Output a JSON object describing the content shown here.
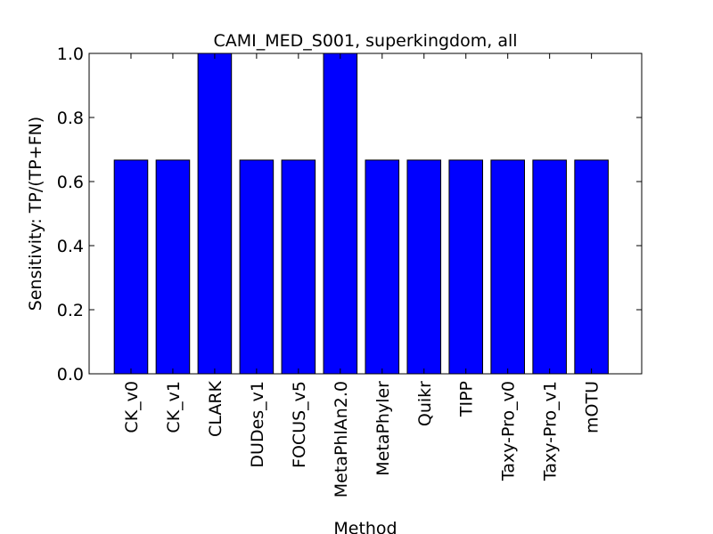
{
  "chart_data": {
    "type": "bar",
    "title": "CAMI_MED_S001, superkingdom, all",
    "xlabel": "Method",
    "ylabel": "Sensitivity: TP/(TP+FN)",
    "categories": [
      "CK_v0",
      "CK_v1",
      "CLARK",
      "DUDes_v1",
      "FOCUS_v5",
      "MetaPhlAn2.0",
      "MetaPhyler",
      "Quikr",
      "TIPP",
      "Taxy-Pro_v0",
      "Taxy-Pro_v1",
      "mOTU"
    ],
    "values": [
      0.667,
      0.667,
      1.0,
      0.667,
      0.667,
      1.0,
      0.667,
      0.667,
      0.667,
      0.667,
      0.667,
      0.667
    ],
    "ylim": [
      0.0,
      1.0
    ],
    "yticks": [
      "0.0",
      "0.2",
      "0.4",
      "0.6",
      "0.8",
      "1.0"
    ],
    "grid": false,
    "colors": {
      "bar": "#0000ff",
      "bar_edge": "#000000",
      "axes": "#000000",
      "background": "#ffffff"
    }
  }
}
